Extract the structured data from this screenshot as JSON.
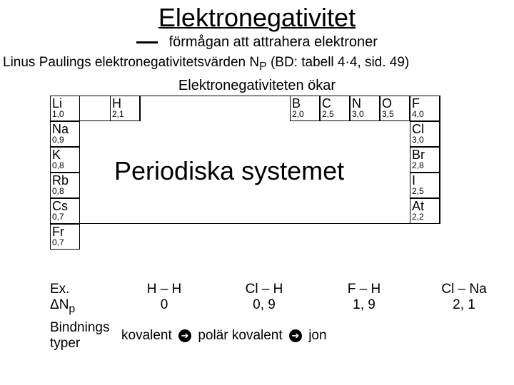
{
  "title": "Elektronegativitet",
  "subtitle": "förmågan att attrahera elektroner",
  "ref_line_a": "Linus Paulings elektronegativitetsvärden N",
  "ref_line_sub": "P",
  "ref_line_b": " (BD: tabell 4·4, sid. 49)",
  "increases": "Elektronegativiteten ökar",
  "big_label": "Periodiska systemet",
  "cell_dim": {
    "w": 42,
    "h": 36
  },
  "cells": [
    {
      "sym": "Li",
      "val": "1,0",
      "col": 0,
      "row": 0
    },
    {
      "sym": "Na",
      "val": "0,9",
      "col": 0,
      "row": 1
    },
    {
      "sym": "K",
      "val": "0,8",
      "col": 0,
      "row": 2
    },
    {
      "sym": "Rb",
      "val": "0,8",
      "col": 0,
      "row": 3
    },
    {
      "sym": "Cs",
      "val": "0,7",
      "col": 0,
      "row": 4
    },
    {
      "sym": "Fr",
      "val": "0,7",
      "col": 0,
      "row": 5
    },
    {
      "sym": "H",
      "val": "2,1",
      "col": 2,
      "row": 0
    },
    {
      "sym": "B",
      "val": "2,0",
      "col": 8,
      "row": 0
    },
    {
      "sym": "C",
      "val": "2,5",
      "col": 9,
      "row": 0
    },
    {
      "sym": "N",
      "val": "3,0",
      "col": 10,
      "row": 0
    },
    {
      "sym": "O",
      "val": "3,5",
      "col": 11,
      "row": 0
    },
    {
      "sym": "F",
      "val": "4,0",
      "col": 12,
      "row": 0
    },
    {
      "sym": "Cl",
      "val": "3,0",
      "col": 12,
      "row": 1
    },
    {
      "sym": "Br",
      "val": "2,8",
      "col": 12,
      "row": 2
    },
    {
      "sym": "I",
      "val": "2,5",
      "col": 12,
      "row": 3
    },
    {
      "sym": "At",
      "val": "2,2",
      "col": 12,
      "row": 4
    }
  ],
  "examples": {
    "label1": "Ex.",
    "label2": "ΔN",
    "label2_sub": "p",
    "cols": [
      {
        "top": "H – H",
        "bot": "0"
      },
      {
        "top": "Cl – H",
        "bot": "0, 9"
      },
      {
        "top": "F – H",
        "bot": "1, 9"
      },
      {
        "top": "Cl – Na",
        "bot": "2, 1"
      }
    ]
  },
  "bond": {
    "label1": "Bindnings",
    "label2": "typer",
    "t1": "kovalent",
    "t2": "polär kovalent",
    "t3": "jon",
    "arrow": "➌"
  },
  "colors": {
    "text": "#000000",
    "bg": "#ffffff"
  }
}
